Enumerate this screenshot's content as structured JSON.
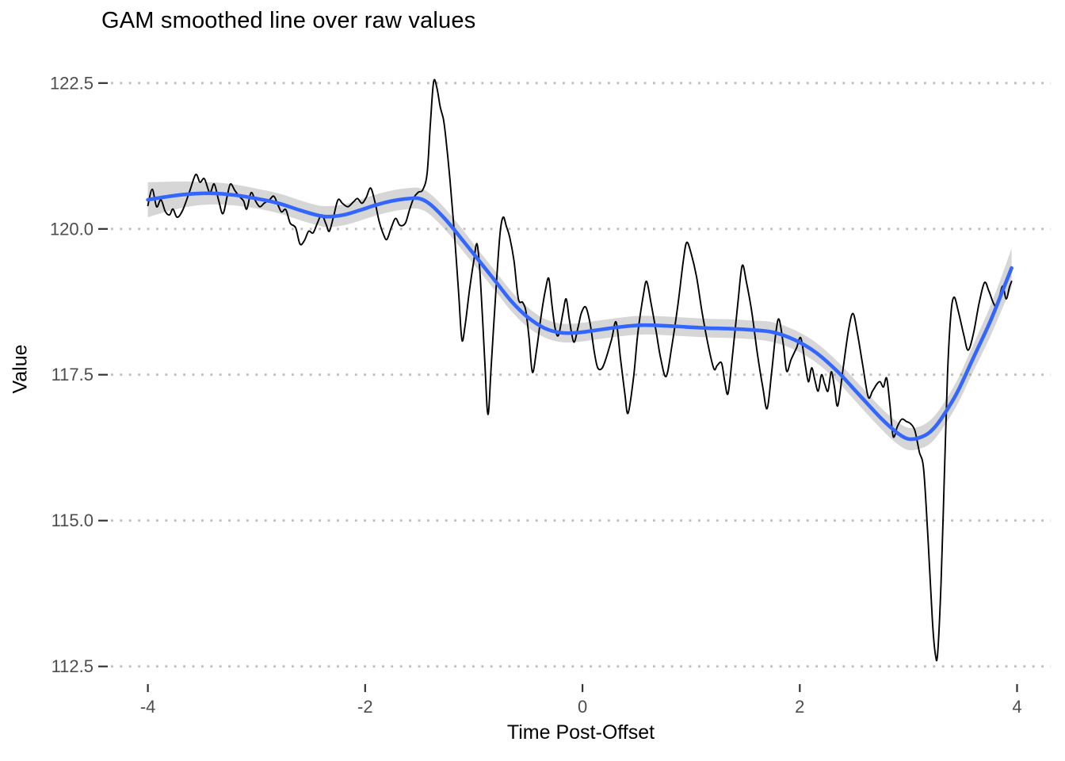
{
  "chart_data": {
    "type": "line",
    "title": "GAM smoothed line over raw values",
    "xlabel": "Time Post-Offset",
    "ylabel": "Value",
    "x_ticks": [
      -4,
      -2,
      0,
      2,
      4
    ],
    "x_tick_labels": [
      "-4",
      "-2",
      "0",
      "2",
      "4"
    ],
    "y_ticks": [
      112.5,
      115.0,
      117.5,
      120.0,
      122.5
    ],
    "y_tick_labels": [
      "112.5",
      "115.0",
      "117.5",
      "120.0",
      "122.5"
    ],
    "xlim": [
      -4.34,
      4.31
    ],
    "ylim": [
      112.21,
      123.0
    ],
    "grid": {
      "horizontal": true,
      "vertical": false,
      "style": "dotted",
      "color": "#BDBDBD"
    },
    "legend": "none",
    "colors": {
      "raw_line": "#000000",
      "smooth_line": "#3366FF",
      "ribbon": "#999999",
      "ribbon_opacity": 0.4,
      "axis_text": "#4D4D4D",
      "tick_mark": "#333333",
      "title_text": "#000000",
      "background": "#FFFFFF"
    },
    "series": [
      {
        "name": "raw values",
        "role": "raw",
        "points": [
          [
            -4.0,
            120.4
          ],
          [
            -3.96,
            120.68
          ],
          [
            -3.92,
            120.38
          ],
          [
            -3.88,
            120.5
          ],
          [
            -3.84,
            120.3
          ],
          [
            -3.8,
            120.24
          ],
          [
            -3.77,
            120.34
          ],
          [
            -3.73,
            120.2
          ],
          [
            -3.68,
            120.32
          ],
          [
            -3.62,
            120.62
          ],
          [
            -3.56,
            120.93
          ],
          [
            -3.52,
            120.8
          ],
          [
            -3.48,
            120.86
          ],
          [
            -3.43,
            120.62
          ],
          [
            -3.39,
            120.77
          ],
          [
            -3.35,
            120.5
          ],
          [
            -3.31,
            120.26
          ],
          [
            -3.27,
            120.56
          ],
          [
            -3.24,
            120.77
          ],
          [
            -3.2,
            120.66
          ],
          [
            -3.16,
            120.56
          ],
          [
            -3.12,
            120.48
          ],
          [
            -3.09,
            120.34
          ],
          [
            -3.05,
            120.62
          ],
          [
            -3.01,
            120.48
          ],
          [
            -2.97,
            120.38
          ],
          [
            -2.93,
            120.44
          ],
          [
            -2.88,
            120.5
          ],
          [
            -2.84,
            120.56
          ],
          [
            -2.8,
            120.4
          ],
          [
            -2.77,
            120.29
          ],
          [
            -2.73,
            120.33
          ],
          [
            -2.69,
            120.1
          ],
          [
            -2.64,
            120.02
          ],
          [
            -2.6,
            119.74
          ],
          [
            -2.56,
            119.8
          ],
          [
            -2.52,
            119.96
          ],
          [
            -2.48,
            119.93
          ],
          [
            -2.44,
            120.1
          ],
          [
            -2.4,
            120.24
          ],
          [
            -2.36,
            120.08
          ],
          [
            -2.33,
            119.96
          ],
          [
            -2.29,
            120.22
          ],
          [
            -2.25,
            120.5
          ],
          [
            -2.21,
            120.44
          ],
          [
            -2.16,
            120.38
          ],
          [
            -2.11,
            120.46
          ],
          [
            -2.07,
            120.52
          ],
          [
            -2.03,
            120.44
          ],
          [
            -1.99,
            120.54
          ],
          [
            -1.95,
            120.7
          ],
          [
            -1.91,
            120.46
          ],
          [
            -1.87,
            120.12
          ],
          [
            -1.83,
            119.9
          ],
          [
            -1.8,
            119.82
          ],
          [
            -1.76,
            120.02
          ],
          [
            -1.72,
            120.18
          ],
          [
            -1.68,
            120.06
          ],
          [
            -1.63,
            120.1
          ],
          [
            -1.59,
            120.34
          ],
          [
            -1.55,
            120.54
          ],
          [
            -1.51,
            120.63
          ],
          [
            -1.47,
            120.67
          ],
          [
            -1.43,
            120.95
          ],
          [
            -1.4,
            121.8
          ],
          [
            -1.37,
            122.52
          ],
          [
            -1.34,
            122.42
          ],
          [
            -1.31,
            122.1
          ],
          [
            -1.28,
            121.88
          ],
          [
            -1.26,
            121.6
          ],
          [
            -1.22,
            120.85
          ],
          [
            -1.18,
            119.95
          ],
          [
            -1.14,
            118.9
          ],
          [
            -1.11,
            118.1
          ],
          [
            -1.08,
            118.35
          ],
          [
            -1.04,
            118.95
          ],
          [
            -1.0,
            119.45
          ],
          [
            -0.97,
            119.74
          ],
          [
            -0.94,
            119.15
          ],
          [
            -0.9,
            117.75
          ],
          [
            -0.87,
            116.82
          ],
          [
            -0.84,
            117.65
          ],
          [
            -0.8,
            118.85
          ],
          [
            -0.76,
            119.9
          ],
          [
            -0.73,
            120.2
          ],
          [
            -0.7,
            120.04
          ],
          [
            -0.67,
            119.86
          ],
          [
            -0.63,
            119.45
          ],
          [
            -0.59,
            118.8
          ],
          [
            -0.55,
            118.74
          ],
          [
            -0.52,
            118.58
          ],
          [
            -0.49,
            118.1
          ],
          [
            -0.46,
            117.54
          ],
          [
            -0.42,
            117.96
          ],
          [
            -0.38,
            118.52
          ],
          [
            -0.34,
            118.96
          ],
          [
            -0.31,
            119.15
          ],
          [
            -0.28,
            118.68
          ],
          [
            -0.25,
            118.28
          ],
          [
            -0.22,
            118.18
          ],
          [
            -0.18,
            118.56
          ],
          [
            -0.15,
            118.8
          ],
          [
            -0.12,
            118.44
          ],
          [
            -0.08,
            118.06
          ],
          [
            -0.04,
            118.32
          ],
          [
            -0.01,
            118.56
          ],
          [
            0.03,
            118.66
          ],
          [
            0.07,
            118.38
          ],
          [
            0.11,
            117.88
          ],
          [
            0.14,
            117.62
          ],
          [
            0.18,
            117.61
          ],
          [
            0.22,
            117.8
          ],
          [
            0.27,
            118.12
          ],
          [
            0.31,
            118.4
          ],
          [
            0.35,
            117.78
          ],
          [
            0.39,
            117.18
          ],
          [
            0.42,
            116.84
          ],
          [
            0.47,
            117.45
          ],
          [
            0.51,
            118.22
          ],
          [
            0.56,
            118.86
          ],
          [
            0.59,
            119.1
          ],
          [
            0.63,
            118.74
          ],
          [
            0.68,
            118.22
          ],
          [
            0.72,
            117.78
          ],
          [
            0.77,
            117.47
          ],
          [
            0.82,
            117.96
          ],
          [
            0.88,
            118.72
          ],
          [
            0.93,
            119.48
          ],
          [
            0.96,
            119.77
          ],
          [
            1.0,
            119.58
          ],
          [
            1.05,
            119.18
          ],
          [
            1.1,
            118.58
          ],
          [
            1.16,
            117.98
          ],
          [
            1.21,
            117.6
          ],
          [
            1.24,
            117.66
          ],
          [
            1.28,
            117.7
          ],
          [
            1.31,
            117.38
          ],
          [
            1.34,
            117.18
          ],
          [
            1.38,
            117.82
          ],
          [
            1.43,
            118.72
          ],
          [
            1.47,
            119.37
          ],
          [
            1.51,
            119.08
          ],
          [
            1.56,
            118.56
          ],
          [
            1.61,
            117.86
          ],
          [
            1.66,
            117.28
          ],
          [
            1.7,
            116.92
          ],
          [
            1.74,
            117.52
          ],
          [
            1.78,
            118.22
          ],
          [
            1.81,
            118.45
          ],
          [
            1.85,
            118.0
          ],
          [
            1.88,
            117.56
          ],
          [
            1.92,
            117.76
          ],
          [
            1.97,
            117.96
          ],
          [
            2.01,
            118.13
          ],
          [
            2.05,
            117.68
          ],
          [
            2.08,
            117.38
          ],
          [
            2.11,
            117.62
          ],
          [
            2.14,
            117.4
          ],
          [
            2.17,
            117.22
          ],
          [
            2.2,
            117.5
          ],
          [
            2.23,
            117.34
          ],
          [
            2.26,
            117.22
          ],
          [
            2.29,
            117.55
          ],
          [
            2.32,
            117.28
          ],
          [
            2.35,
            116.97
          ],
          [
            2.4,
            117.62
          ],
          [
            2.45,
            118.28
          ],
          [
            2.49,
            118.55
          ],
          [
            2.53,
            118.22
          ],
          [
            2.58,
            117.66
          ],
          [
            2.63,
            117.12
          ],
          [
            2.67,
            117.22
          ],
          [
            2.71,
            117.34
          ],
          [
            2.74,
            117.38
          ],
          [
            2.77,
            117.29
          ],
          [
            2.8,
            117.44
          ],
          [
            2.83,
            116.98
          ],
          [
            2.86,
            116.44
          ],
          [
            2.9,
            116.62
          ],
          [
            2.94,
            116.74
          ],
          [
            2.98,
            116.7
          ],
          [
            3.02,
            116.66
          ],
          [
            3.06,
            116.54
          ],
          [
            3.1,
            116.18
          ],
          [
            3.14,
            115.88
          ],
          [
            3.18,
            114.7
          ],
          [
            3.22,
            113.3
          ],
          [
            3.25,
            112.68
          ],
          [
            3.27,
            112.74
          ],
          [
            3.3,
            113.9
          ],
          [
            3.33,
            115.7
          ],
          [
            3.36,
            117.5
          ],
          [
            3.39,
            118.52
          ],
          [
            3.42,
            118.83
          ],
          [
            3.46,
            118.58
          ],
          [
            3.51,
            118.18
          ],
          [
            3.55,
            117.92
          ],
          [
            3.6,
            118.22
          ],
          [
            3.65,
            118.72
          ],
          [
            3.7,
            119.08
          ],
          [
            3.74,
            118.94
          ],
          [
            3.78,
            118.74
          ],
          [
            3.81,
            118.67
          ],
          [
            3.84,
            118.86
          ],
          [
            3.87,
            119.02
          ],
          [
            3.9,
            118.8
          ],
          [
            3.93,
            119.0
          ],
          [
            3.95,
            119.1
          ]
        ]
      },
      {
        "name": "GAM smooth",
        "role": "smooth",
        "points": [
          [
            -4.0,
            120.5
          ],
          [
            -3.8,
            120.56
          ],
          [
            -3.6,
            120.6
          ],
          [
            -3.4,
            120.61
          ],
          [
            -3.2,
            120.58
          ],
          [
            -3.0,
            120.52
          ],
          [
            -2.8,
            120.44
          ],
          [
            -2.6,
            120.32
          ],
          [
            -2.45,
            120.24
          ],
          [
            -2.35,
            120.21
          ],
          [
            -2.2,
            120.24
          ],
          [
            -2.05,
            120.32
          ],
          [
            -1.9,
            120.41
          ],
          [
            -1.75,
            120.48
          ],
          [
            -1.6,
            120.52
          ],
          [
            -1.5,
            120.52
          ],
          [
            -1.4,
            120.42
          ],
          [
            -1.25,
            120.14
          ],
          [
            -1.1,
            119.8
          ],
          [
            -0.95,
            119.45
          ],
          [
            -0.8,
            119.1
          ],
          [
            -0.65,
            118.75
          ],
          [
            -0.5,
            118.48
          ],
          [
            -0.35,
            118.3
          ],
          [
            -0.2,
            118.22
          ],
          [
            -0.05,
            118.22
          ],
          [
            0.15,
            118.27
          ],
          [
            0.35,
            118.32
          ],
          [
            0.55,
            118.35
          ],
          [
            0.75,
            118.34
          ],
          [
            0.95,
            118.32
          ],
          [
            1.15,
            118.3
          ],
          [
            1.35,
            118.29
          ],
          [
            1.55,
            118.27
          ],
          [
            1.75,
            118.23
          ],
          [
            1.95,
            118.1
          ],
          [
            2.15,
            117.88
          ],
          [
            2.35,
            117.55
          ],
          [
            2.55,
            117.15
          ],
          [
            2.75,
            116.75
          ],
          [
            2.9,
            116.5
          ],
          [
            3.0,
            116.4
          ],
          [
            3.1,
            116.42
          ],
          [
            3.2,
            116.52
          ],
          [
            3.3,
            116.74
          ],
          [
            3.45,
            117.2
          ],
          [
            3.6,
            117.8
          ],
          [
            3.75,
            118.4
          ],
          [
            3.88,
            119.0
          ],
          [
            3.95,
            119.33
          ]
        ],
        "ci_halfwidth": [
          0.3,
          0.25,
          0.21,
          0.19,
          0.18,
          0.17,
          0.17,
          0.17,
          0.17,
          0.18,
          0.18,
          0.18,
          0.18,
          0.18,
          0.18,
          0.18,
          0.18,
          0.18,
          0.18,
          0.17,
          0.17,
          0.17,
          0.17,
          0.16,
          0.16,
          0.16,
          0.16,
          0.16,
          0.16,
          0.16,
          0.16,
          0.16,
          0.16,
          0.16,
          0.17,
          0.17,
          0.17,
          0.17,
          0.18,
          0.18,
          0.19,
          0.19,
          0.19,
          0.2,
          0.2,
          0.21,
          0.23,
          0.26,
          0.3,
          0.34
        ]
      }
    ]
  }
}
